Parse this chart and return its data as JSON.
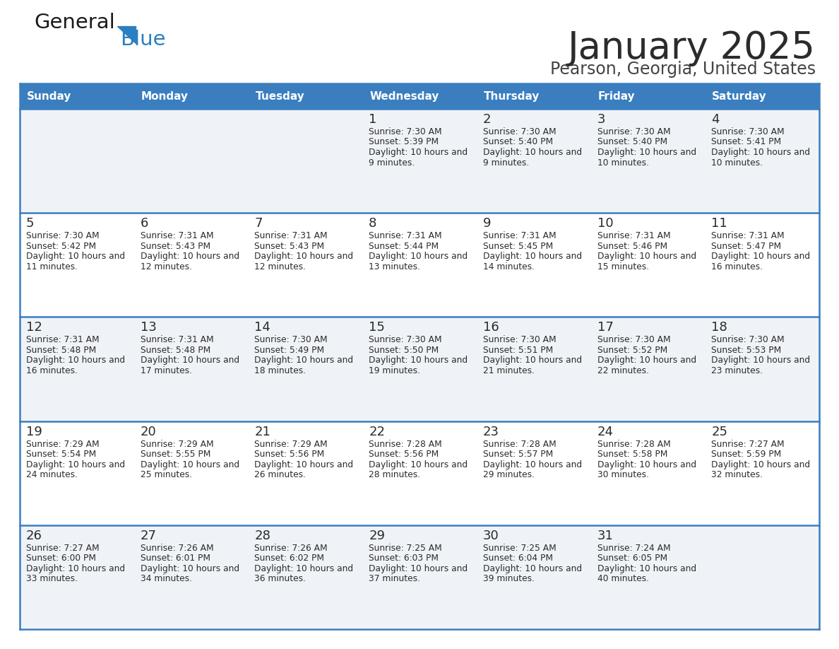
{
  "title": "January 2025",
  "subtitle": "Pearson, Georgia, United States",
  "header_bg": "#3a7ebf",
  "header_text": "#ffffff",
  "row0_bg": "#f0f4f8",
  "row1_bg": "#ffffff",
  "row2_bg": "#f0f4f8",
  "row3_bg": "#ffffff",
  "row4_bg": "#f0f4f8",
  "border_color": "#3a7ebf",
  "title_color": "#2b2b2b",
  "subtitle_color": "#444444",
  "day_number_color": "#2b2b2b",
  "cell_text_color": "#2b2b2b",
  "logo_text_color": "#1a1a1a",
  "logo_blue_color": "#2a7fc1",
  "days_of_week": [
    "Sunday",
    "Monday",
    "Tuesday",
    "Wednesday",
    "Thursday",
    "Friday",
    "Saturday"
  ],
  "calendar_data": [
    [
      {
        "day": "",
        "sunrise": "",
        "sunset": "",
        "daylight": ""
      },
      {
        "day": "",
        "sunrise": "",
        "sunset": "",
        "daylight": ""
      },
      {
        "day": "",
        "sunrise": "",
        "sunset": "",
        "daylight": ""
      },
      {
        "day": "1",
        "sunrise": "7:30 AM",
        "sunset": "5:39 PM",
        "daylight": "10 hours and 9 minutes."
      },
      {
        "day": "2",
        "sunrise": "7:30 AM",
        "sunset": "5:40 PM",
        "daylight": "10 hours and 9 minutes."
      },
      {
        "day": "3",
        "sunrise": "7:30 AM",
        "sunset": "5:40 PM",
        "daylight": "10 hours and 10 minutes."
      },
      {
        "day": "4",
        "sunrise": "7:30 AM",
        "sunset": "5:41 PM",
        "daylight": "10 hours and 10 minutes."
      }
    ],
    [
      {
        "day": "5",
        "sunrise": "7:30 AM",
        "sunset": "5:42 PM",
        "daylight": "10 hours and 11 minutes."
      },
      {
        "day": "6",
        "sunrise": "7:31 AM",
        "sunset": "5:43 PM",
        "daylight": "10 hours and 12 minutes."
      },
      {
        "day": "7",
        "sunrise": "7:31 AM",
        "sunset": "5:43 PM",
        "daylight": "10 hours and 12 minutes."
      },
      {
        "day": "8",
        "sunrise": "7:31 AM",
        "sunset": "5:44 PM",
        "daylight": "10 hours and 13 minutes."
      },
      {
        "day": "9",
        "sunrise": "7:31 AM",
        "sunset": "5:45 PM",
        "daylight": "10 hours and 14 minutes."
      },
      {
        "day": "10",
        "sunrise": "7:31 AM",
        "sunset": "5:46 PM",
        "daylight": "10 hours and 15 minutes."
      },
      {
        "day": "11",
        "sunrise": "7:31 AM",
        "sunset": "5:47 PM",
        "daylight": "10 hours and 16 minutes."
      }
    ],
    [
      {
        "day": "12",
        "sunrise": "7:31 AM",
        "sunset": "5:48 PM",
        "daylight": "10 hours and 16 minutes."
      },
      {
        "day": "13",
        "sunrise": "7:31 AM",
        "sunset": "5:48 PM",
        "daylight": "10 hours and 17 minutes."
      },
      {
        "day": "14",
        "sunrise": "7:30 AM",
        "sunset": "5:49 PM",
        "daylight": "10 hours and 18 minutes."
      },
      {
        "day": "15",
        "sunrise": "7:30 AM",
        "sunset": "5:50 PM",
        "daylight": "10 hours and 19 minutes."
      },
      {
        "day": "16",
        "sunrise": "7:30 AM",
        "sunset": "5:51 PM",
        "daylight": "10 hours and 21 minutes."
      },
      {
        "day": "17",
        "sunrise": "7:30 AM",
        "sunset": "5:52 PM",
        "daylight": "10 hours and 22 minutes."
      },
      {
        "day": "18",
        "sunrise": "7:30 AM",
        "sunset": "5:53 PM",
        "daylight": "10 hours and 23 minutes."
      }
    ],
    [
      {
        "day": "19",
        "sunrise": "7:29 AM",
        "sunset": "5:54 PM",
        "daylight": "10 hours and 24 minutes."
      },
      {
        "day": "20",
        "sunrise": "7:29 AM",
        "sunset": "5:55 PM",
        "daylight": "10 hours and 25 minutes."
      },
      {
        "day": "21",
        "sunrise": "7:29 AM",
        "sunset": "5:56 PM",
        "daylight": "10 hours and 26 minutes."
      },
      {
        "day": "22",
        "sunrise": "7:28 AM",
        "sunset": "5:56 PM",
        "daylight": "10 hours and 28 minutes."
      },
      {
        "day": "23",
        "sunrise": "7:28 AM",
        "sunset": "5:57 PM",
        "daylight": "10 hours and 29 minutes."
      },
      {
        "day": "24",
        "sunrise": "7:28 AM",
        "sunset": "5:58 PM",
        "daylight": "10 hours and 30 minutes."
      },
      {
        "day": "25",
        "sunrise": "7:27 AM",
        "sunset": "5:59 PM",
        "daylight": "10 hours and 32 minutes."
      }
    ],
    [
      {
        "day": "26",
        "sunrise": "7:27 AM",
        "sunset": "6:00 PM",
        "daylight": "10 hours and 33 minutes."
      },
      {
        "day": "27",
        "sunrise": "7:26 AM",
        "sunset": "6:01 PM",
        "daylight": "10 hours and 34 minutes."
      },
      {
        "day": "28",
        "sunrise": "7:26 AM",
        "sunset": "6:02 PM",
        "daylight": "10 hours and 36 minutes."
      },
      {
        "day": "29",
        "sunrise": "7:25 AM",
        "sunset": "6:03 PM",
        "daylight": "10 hours and 37 minutes."
      },
      {
        "day": "30",
        "sunrise": "7:25 AM",
        "sunset": "6:04 PM",
        "daylight": "10 hours and 39 minutes."
      },
      {
        "day": "31",
        "sunrise": "7:24 AM",
        "sunset": "6:05 PM",
        "daylight": "10 hours and 40 minutes."
      },
      {
        "day": "",
        "sunrise": "",
        "sunset": "",
        "daylight": ""
      }
    ]
  ],
  "row_bgs": [
    "#eff3f7",
    "#ffffff",
    "#eff3f7",
    "#ffffff",
    "#eff3f7"
  ]
}
